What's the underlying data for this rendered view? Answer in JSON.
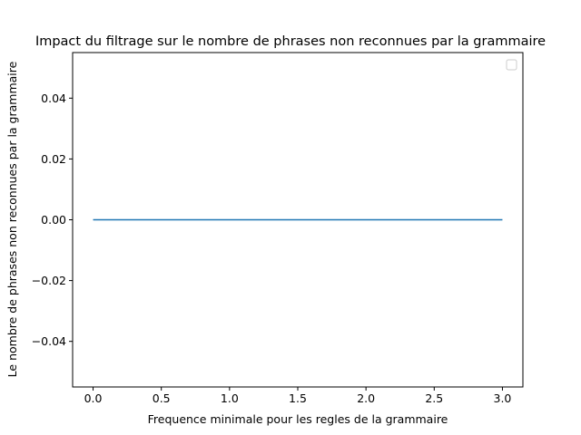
{
  "chart_data": {
    "type": "line",
    "title": "Impact du filtrage sur le nombre de phrases non reconnues par la grammaire",
    "xlabel": "Frequence minimale pour les regles de la grammaire",
    "ylabel": "Le nombre de phrases non reconnues par la grammaire",
    "x": [
      0,
      1,
      2,
      3
    ],
    "series": [
      {
        "values": [
          0,
          0,
          0,
          0
        ],
        "color": "#1f77b4"
      }
    ],
    "xlim": [
      -0.15,
      3.15
    ],
    "ylim": [
      -0.055,
      0.055
    ],
    "xticks": [
      "0.0",
      "0.5",
      "1.0",
      "1.5",
      "2.0",
      "2.5",
      "3.0"
    ],
    "yticks": [
      "−0.04",
      "−0.02",
      "0.00",
      "0.02",
      "0.04"
    ],
    "legend": {
      "placement": "top-right",
      "entries": []
    },
    "grid": false
  }
}
